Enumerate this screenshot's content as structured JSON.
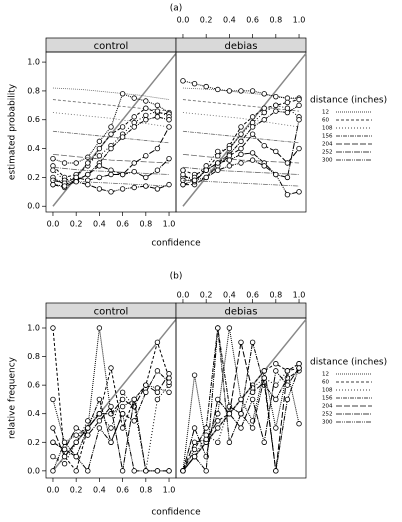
{
  "chart_data": [
    {
      "type": "line",
      "title": "(a)",
      "xlabel": "confidence",
      "ylabel": "estimated probability",
      "legend_title": "distance (inches)",
      "xlim": [
        -0.06,
        1.06
      ],
      "ylim": [
        -0.04,
        1.07
      ],
      "xticks": [
        {
          "value": 0,
          "label": "0.0"
        },
        {
          "value": 0.2,
          "label": "0.2"
        },
        {
          "value": 0.4,
          "label": "0.4"
        },
        {
          "value": 0.6,
          "label": "0.6"
        },
        {
          "value": 0.8,
          "label": "0.8"
        },
        {
          "value": 1,
          "label": "1.0"
        }
      ],
      "yticks": [
        {
          "value": 0,
          "label": "0.0"
        },
        {
          "value": 0.2,
          "label": "0.2"
        },
        {
          "value": 0.4,
          "label": "0.4"
        },
        {
          "value": 0.6,
          "label": "0.6"
        },
        {
          "value": 0.8,
          "label": "0.8"
        },
        {
          "value": 1,
          "label": "1.0"
        }
      ],
      "x": [
        0,
        0.1,
        0.2,
        0.3,
        0.4,
        0.5,
        0.6,
        0.7,
        0.8,
        0.9,
        1
      ],
      "fit_x": [
        0,
        0.25,
        0.5,
        0.75,
        1
      ],
      "panels": [
        {
          "name": "control",
          "series": [
            {
              "name": "12",
              "dash": "1,1",
              "color": "#000",
              "values": [
                0.33,
                0.3,
                0.3,
                0.34,
                0.45,
                0.55,
                0.78,
                0.75,
                0.73,
                0.7,
                0.65
              ],
              "fit": [
                0.82,
                0.81,
                0.79,
                0.77,
                0.74
              ]
            },
            {
              "name": "60",
              "dash": "3,2",
              "color": "#000",
              "values": [
                0.28,
                0.2,
                0.22,
                0.28,
                0.4,
                0.5,
                0.55,
                0.62,
                0.68,
                0.65,
                0.64
              ],
              "fit": [
                0.74,
                0.72,
                0.7,
                0.68,
                0.66
              ]
            },
            {
              "name": "108",
              "dash": "1,2",
              "color": "#000",
              "values": [
                0.25,
                0.18,
                0.2,
                0.3,
                0.35,
                0.42,
                0.5,
                0.58,
                0.63,
                0.66,
                0.62
              ],
              "fit": [
                0.65,
                0.63,
                0.61,
                0.58,
                0.55
              ]
            },
            {
              "name": "156",
              "dash": "4,1,1,1",
              "color": "#000",
              "values": [
                0.2,
                0.15,
                0.18,
                0.22,
                0.3,
                0.4,
                0.48,
                0.55,
                0.6,
                0.62,
                0.6
              ],
              "fit": [
                0.52,
                0.5,
                0.48,
                0.46,
                0.44
              ]
            },
            {
              "name": "204",
              "dash": "6,2",
              "color": "#000",
              "values": [
                0.15,
                0.13,
                0.18,
                0.22,
                0.28,
                0.25,
                0.22,
                0.3,
                0.35,
                0.4,
                0.55
              ],
              "fit": [
                0.36,
                0.34,
                0.32,
                0.31,
                0.3
              ]
            },
            {
              "name": "252",
              "dash": "6,1,1,1",
              "color": "#000",
              "values": [
                0.18,
                0.16,
                0.2,
                0.18,
                0.2,
                0.22,
                0.22,
                0.24,
                0.2,
                0.25,
                0.33
              ],
              "fit": [
                0.27,
                0.25,
                0.24,
                0.23,
                0.22
              ]
            },
            {
              "name": "300",
              "dash": "5,1,1,1,1,1",
              "color": "#000",
              "values": [
                0.15,
                0.14,
                0.17,
                0.15,
                0.12,
                0.1,
                0.12,
                0.13,
                0.14,
                0.12,
                0.15
              ],
              "fit": [
                0.18,
                0.17,
                0.16,
                0.15,
                0.14
              ]
            }
          ]
        },
        {
          "name": "debias",
          "series": [
            {
              "name": "12",
              "dash": "1,1",
              "color": "#000",
              "values": [
                0.87,
                0.85,
                0.83,
                0.81,
                0.8,
                0.8,
                0.8,
                0.78,
                0.76,
                0.75,
                0.75
              ],
              "fit": [
                0.82,
                0.81,
                0.79,
                0.77,
                0.74
              ]
            },
            {
              "name": "60",
              "dash": "3,2",
              "color": "#000",
              "values": [
                0.25,
                0.22,
                0.25,
                0.35,
                0.42,
                0.55,
                0.62,
                0.68,
                0.7,
                0.72,
                0.74
              ],
              "fit": [
                0.74,
                0.72,
                0.7,
                0.68,
                0.66
              ]
            },
            {
              "name": "108",
              "dash": "1,2",
              "color": "#000",
              "values": [
                0.2,
                0.2,
                0.28,
                0.38,
                0.4,
                0.5,
                0.58,
                0.65,
                0.7,
                0.68,
                0.62
              ],
              "fit": [
                0.65,
                0.63,
                0.61,
                0.58,
                0.55
              ]
            },
            {
              "name": "156",
              "dash": "4,1,1,1",
              "color": "#000",
              "values": [
                0.18,
                0.18,
                0.25,
                0.3,
                0.36,
                0.45,
                0.55,
                0.6,
                0.66,
                0.65,
                0.7
              ],
              "fit": [
                0.52,
                0.5,
                0.48,
                0.46,
                0.44
              ]
            },
            {
              "name": "204",
              "dash": "6,2",
              "color": "#000",
              "values": [
                0.15,
                0.15,
                0.2,
                0.28,
                0.35,
                0.4,
                0.5,
                0.42,
                0.38,
                0.3,
                0.4
              ],
              "fit": [
                0.36,
                0.34,
                0.32,
                0.31,
                0.3
              ]
            },
            {
              "name": "252",
              "dash": "6,1,1,1",
              "color": "#000",
              "values": [
                0.22,
                0.17,
                0.25,
                0.3,
                0.32,
                0.36,
                0.37,
                0.3,
                0.22,
                0.2,
                0.6
              ],
              "fit": [
                0.27,
                0.25,
                0.24,
                0.23,
                0.22
              ]
            },
            {
              "name": "300",
              "dash": "5,1,1,1,1,1",
              "color": "#000",
              "values": [
                0.15,
                0.18,
                0.2,
                0.25,
                0.28,
                0.3,
                0.32,
                0.28,
                0.22,
                0.08,
                0.1
              ],
              "fit": [
                0.18,
                0.17,
                0.16,
                0.15,
                0.14
              ]
            }
          ]
        }
      ]
    },
    {
      "type": "line",
      "title": "(b)",
      "xlabel": "confidence",
      "ylabel": "relative frequency",
      "legend_title": "distance (inches)",
      "xlim": [
        -0.06,
        1.06
      ],
      "ylim": [
        -0.05,
        1.07
      ],
      "xticks": [
        {
          "value": 0,
          "label": "0.0"
        },
        {
          "value": 0.2,
          "label": "0.2"
        },
        {
          "value": 0.4,
          "label": "0.4"
        },
        {
          "value": 0.6,
          "label": "0.6"
        },
        {
          "value": 0.8,
          "label": "0.8"
        },
        {
          "value": 1,
          "label": "1.0"
        }
      ],
      "yticks": [
        {
          "value": 0,
          "label": "0.0"
        },
        {
          "value": 0.2,
          "label": "0.2"
        },
        {
          "value": 0.4,
          "label": "0.4"
        },
        {
          "value": 0.6,
          "label": "0.6"
        },
        {
          "value": 0.8,
          "label": "0.8"
        },
        {
          "value": 1,
          "label": "1.0"
        }
      ],
      "x": [
        0,
        0.1,
        0.2,
        0.3,
        0.4,
        0.5,
        0.6,
        0.7,
        0.8,
        0.9,
        1
      ],
      "panels": [
        {
          "name": "control",
          "series": [
            {
              "name": "12",
              "dash": "1,1",
              "color": "#000",
              "values": [
                0.5,
                0.2,
                0.25,
                0.3,
                1.0,
                0.4,
                0.45,
                0.5,
                0.6,
                0.58,
                0.55
              ]
            },
            {
              "name": "60",
              "dash": "3,2",
              "color": "#000",
              "values": [
                1.0,
                0.1,
                0.0,
                0.3,
                0.4,
                0.72,
                0.3,
                0.5,
                0.6,
                0.9,
                0.65
              ]
            },
            {
              "name": "108",
              "dash": "1,2",
              "color": "#000",
              "values": [
                0.1,
                0.05,
                0.2,
                0.35,
                0.4,
                0.3,
                0.55,
                0.45,
                0.0,
                0.5,
                0.6
              ]
            },
            {
              "name": "156",
              "dash": "4,1,1,1",
              "color": "#000",
              "values": [
                0.2,
                0.15,
                0.1,
                0.3,
                0.5,
                0.2,
                0.4,
                0.35,
                0.55,
                0.7,
                0.62
              ]
            },
            {
              "name": "204",
              "dash": "6,2",
              "color": "#000",
              "values": [
                0.3,
                0.1,
                0.2,
                0.3,
                0.4,
                0.4,
                0.5,
                0.45,
                0.6,
                0.55,
                0.68
              ]
            },
            {
              "name": "252",
              "dash": "6,1,1,1",
              "color": "#000",
              "values": [
                0.2,
                0.15,
                0.3,
                0.25,
                0.35,
                0.45,
                0.0,
                0.5,
                0.0,
                0.0,
                0.0
              ]
            },
            {
              "name": "300",
              "dash": "5,1,1,1,1,1",
              "color": "#000",
              "values": [
                0.0,
                0.2,
                0.1,
                0.0,
                0.3,
                0.2,
                0.4,
                0.0,
                0.0,
                0.0,
                0.0
              ]
            }
          ]
        },
        {
          "name": "debias",
          "series": [
            {
              "name": "12",
              "dash": "1,1",
              "color": "#000",
              "values": [
                0.0,
                0.67,
                0.2,
                0.4,
                1.0,
                0.5,
                0.35,
                0.7,
                0.3,
                0.7,
                0.33
              ]
            },
            {
              "name": "60",
              "dash": "3,2",
              "color": "#000",
              "values": [
                0.0,
                0.1,
                0.2,
                0.3,
                0.4,
                0.5,
                0.6,
                0.7,
                0.75,
                0.7,
                0.72
              ]
            },
            {
              "name": "108",
              "dash": "1,2",
              "color": "#000",
              "values": [
                0.0,
                0.1,
                0.25,
                0.2,
                0.45,
                0.4,
                0.58,
                0.65,
                0.6,
                0.7,
                0.75
              ]
            },
            {
              "name": "156",
              "dash": "4,1,1,1",
              "color": "#000",
              "values": [
                0.0,
                0.15,
                0.3,
                1.0,
                0.45,
                0.4,
                0.9,
                0.6,
                0.5,
                0.65,
                0.7
              ]
            },
            {
              "name": "204",
              "dash": "6,2",
              "color": "#000",
              "values": [
                0.0,
                0.2,
                0.22,
                0.35,
                0.4,
                0.9,
                0.55,
                0.62,
                0.0,
                0.7,
                0.75
              ]
            },
            {
              "name": "252",
              "dash": "6,1,1,1",
              "color": "#000",
              "values": [
                0.0,
                0.3,
                0.1,
                0.5,
                0.4,
                0.3,
                0.5,
                0.2,
                0.7,
                0.6,
                0.72
              ]
            },
            {
              "name": "300",
              "dash": "5,1,1,1,1,1",
              "color": "#000",
              "values": [
                0.0,
                0.1,
                0.0,
                1.0,
                0.2,
                0.4,
                0.3,
                0.65,
                0.0,
                0.5,
                0.72
              ]
            }
          ]
        }
      ]
    }
  ]
}
